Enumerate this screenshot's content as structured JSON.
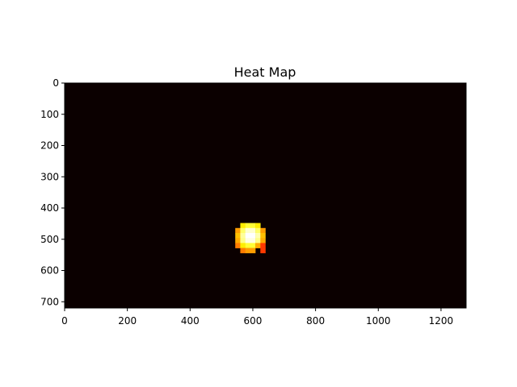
{
  "chart_data": {
    "type": "heatmap",
    "title": "Heat Map",
    "xlabel": "",
    "ylabel": "",
    "xlim": [
      0,
      1280
    ],
    "ylim": [
      720,
      0
    ],
    "xticks": [
      0,
      200,
      400,
      600,
      800,
      1000,
      1200
    ],
    "yticks": [
      0,
      100,
      200,
      300,
      400,
      500,
      600,
      700
    ],
    "colormap": "hot",
    "background_color": "#0b0000",
    "grid": false,
    "legend": "none",
    "cell_size": 16,
    "hotspot_cells": [
      {
        "x": 560,
        "y": 448,
        "level": 0.72
      },
      {
        "x": 576,
        "y": 448,
        "level": 0.8
      },
      {
        "x": 592,
        "y": 448,
        "level": 0.8
      },
      {
        "x": 608,
        "y": 448,
        "level": 0.72
      },
      {
        "x": 544,
        "y": 464,
        "level": 0.6
      },
      {
        "x": 560,
        "y": 464,
        "level": 0.85
      },
      {
        "x": 576,
        "y": 464,
        "level": 0.95
      },
      {
        "x": 592,
        "y": 464,
        "level": 0.95
      },
      {
        "x": 608,
        "y": 464,
        "level": 0.85
      },
      {
        "x": 624,
        "y": 464,
        "level": 0.6
      },
      {
        "x": 544,
        "y": 480,
        "level": 0.65
      },
      {
        "x": 560,
        "y": 480,
        "level": 0.9
      },
      {
        "x": 576,
        "y": 480,
        "level": 1.0
      },
      {
        "x": 592,
        "y": 480,
        "level": 1.0
      },
      {
        "x": 608,
        "y": 480,
        "level": 0.92
      },
      {
        "x": 624,
        "y": 480,
        "level": 0.65
      },
      {
        "x": 544,
        "y": 496,
        "level": 0.62
      },
      {
        "x": 560,
        "y": 496,
        "level": 0.88
      },
      {
        "x": 576,
        "y": 496,
        "level": 0.97
      },
      {
        "x": 592,
        "y": 496,
        "level": 0.97
      },
      {
        "x": 608,
        "y": 496,
        "level": 0.88
      },
      {
        "x": 624,
        "y": 496,
        "level": 0.62
      },
      {
        "x": 544,
        "y": 512,
        "level": 0.55
      },
      {
        "x": 560,
        "y": 512,
        "level": 0.72
      },
      {
        "x": 576,
        "y": 512,
        "level": 0.8
      },
      {
        "x": 592,
        "y": 512,
        "level": 0.8
      },
      {
        "x": 608,
        "y": 512,
        "level": 0.62
      },
      {
        "x": 624,
        "y": 512,
        "level": 0.45
      },
      {
        "x": 560,
        "y": 528,
        "level": 0.55
      },
      {
        "x": 576,
        "y": 528,
        "level": 0.6
      },
      {
        "x": 592,
        "y": 528,
        "level": 0.6
      },
      {
        "x": 624,
        "y": 528,
        "level": 0.45
      }
    ]
  }
}
